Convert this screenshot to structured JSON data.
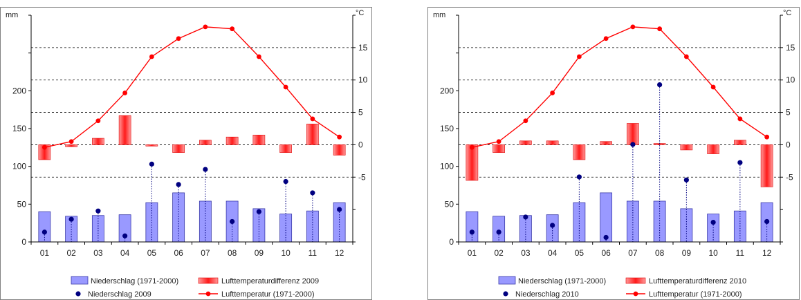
{
  "chart_data": [
    {
      "type": "bar",
      "title": "",
      "left_axis_unit": "mm",
      "right_axis_unit": "°C",
      "ylim_left": [
        0,
        300
      ],
      "ylim_right": [
        -15,
        20
      ],
      "left_ticks": [
        0,
        50,
        100,
        150,
        200
      ],
      "right_ticks": [
        -5,
        0,
        5,
        10,
        15
      ],
      "grid": "dashed horizontal",
      "legend_position": "bottom",
      "categories": [
        "01",
        "02",
        "03",
        "04",
        "05",
        "06",
        "07",
        "08",
        "09",
        "10",
        "11",
        "12"
      ],
      "series": [
        {
          "name": "Niederschlag (1971-2000)",
          "kind": "bar",
          "axis": "left",
          "color": "#9999ff",
          "values": [
            40,
            34,
            35,
            36,
            52,
            65,
            54,
            54,
            44,
            37,
            41,
            52
          ]
        },
        {
          "name": "Lufttemperaturdifferenz 2009",
          "kind": "diff-bar",
          "axis": "right",
          "color": "#ff0000",
          "values": [
            -2.3,
            -0.3,
            1.0,
            4.5,
            -0.2,
            -1.2,
            0.7,
            1.2,
            1.5,
            -1.2,
            3.2,
            -1.6
          ]
        },
        {
          "name": "Niederschlag 2009",
          "kind": "point-with-drop",
          "axis": "left",
          "color": "#000080",
          "values": [
            13,
            30,
            41,
            8,
            103,
            76,
            96,
            27,
            40,
            80,
            65,
            43
          ]
        },
        {
          "name": "Lufttemperatur (1971-2000)",
          "kind": "line",
          "axis": "right",
          "color": "#ff0000",
          "values": [
            -0.4,
            0.5,
            3.7,
            8.0,
            13.6,
            16.4,
            18.2,
            17.9,
            13.6,
            8.9,
            4.0,
            1.2
          ]
        }
      ]
    },
    {
      "type": "bar",
      "title": "",
      "left_axis_unit": "mm",
      "right_axis_unit": "°C",
      "ylim_left": [
        0,
        300
      ],
      "ylim_right": [
        -15,
        20
      ],
      "left_ticks": [
        0,
        50,
        100,
        150,
        200
      ],
      "right_ticks": [
        -5,
        0,
        5,
        10,
        15
      ],
      "grid": "dashed horizontal",
      "legend_position": "bottom",
      "categories": [
        "01",
        "02",
        "03",
        "04",
        "05",
        "06",
        "07",
        "08",
        "09",
        "10",
        "11",
        "12"
      ],
      "series": [
        {
          "name": "Niederschlag (1971-2000)",
          "kind": "bar",
          "axis": "left",
          "color": "#9999ff",
          "values": [
            40,
            34,
            35,
            36,
            52,
            65,
            54,
            54,
            44,
            37,
            41,
            52
          ]
        },
        {
          "name": "Lufttemperaturdifferenz 2010",
          "kind": "diff-bar",
          "axis": "right",
          "color": "#ff0000",
          "values": [
            -5.5,
            -1.2,
            0.6,
            0.6,
            -2.3,
            0.5,
            3.3,
            0.2,
            -0.8,
            -1.4,
            0.7,
            -6.5
          ]
        },
        {
          "name": "Niederschlag 2010",
          "kind": "point-with-drop",
          "axis": "left",
          "color": "#000080",
          "values": [
            13,
            13,
            33,
            22,
            86,
            6,
            129,
            208,
            82,
            26,
            105,
            27
          ]
        },
        {
          "name": "Lufttemperatur (1971-2000)",
          "kind": "line",
          "axis": "right",
          "color": "#ff0000",
          "values": [
            -0.4,
            0.5,
            3.7,
            8.0,
            13.6,
            16.4,
            18.2,
            17.9,
            13.6,
            8.9,
            4.0,
            1.2
          ]
        }
      ]
    }
  ]
}
